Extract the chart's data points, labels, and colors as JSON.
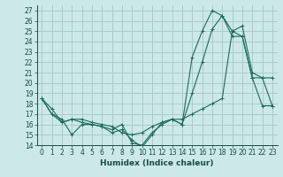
{
  "xlabel": "Humidex (Indice chaleur)",
  "background_color": "#cce8e8",
  "grid_color": "#aacccc",
  "line_color": "#1a6b5a",
  "xlim": [
    -0.5,
    23.5
  ],
  "ylim": [
    14,
    27.5
  ],
  "xticks": [
    0,
    1,
    2,
    3,
    4,
    5,
    6,
    7,
    8,
    9,
    10,
    11,
    12,
    13,
    14,
    15,
    16,
    17,
    18,
    19,
    20,
    21,
    22,
    23
  ],
  "yticks": [
    14,
    15,
    16,
    17,
    18,
    19,
    20,
    21,
    22,
    23,
    24,
    25,
    26,
    27
  ],
  "series1_x": [
    0,
    1,
    2,
    3,
    4,
    5,
    6,
    7,
    8,
    9,
    10,
    11,
    12,
    13,
    14,
    15,
    16,
    17,
    18,
    19,
    20,
    21,
    22,
    23
  ],
  "series1_y": [
    18.5,
    17.0,
    16.2,
    16.5,
    16.2,
    16.0,
    15.8,
    15.5,
    16.0,
    14.2,
    14.0,
    15.2,
    16.0,
    16.5,
    16.0,
    19.0,
    22.0,
    25.2,
    26.5,
    25.0,
    24.5,
    20.5,
    17.8,
    17.8
  ],
  "series2_x": [
    0,
    1,
    2,
    3,
    4,
    5,
    6,
    7,
    8,
    9,
    10,
    11,
    12,
    13,
    14,
    15,
    16,
    17,
    18,
    19,
    20,
    21,
    22,
    23
  ],
  "series2_y": [
    18.5,
    17.0,
    16.5,
    15.0,
    16.0,
    16.0,
    15.8,
    15.2,
    15.5,
    14.5,
    13.8,
    15.0,
    16.2,
    16.5,
    16.0,
    22.5,
    25.0,
    27.0,
    26.5,
    24.5,
    24.5,
    20.5,
    20.5,
    20.5
  ],
  "series3_x": [
    0,
    1,
    2,
    3,
    4,
    5,
    6,
    7,
    8,
    9,
    10,
    11,
    12,
    13,
    14,
    15,
    16,
    17,
    18,
    19,
    20,
    21,
    22,
    23
  ],
  "series3_y": [
    18.5,
    17.5,
    16.2,
    16.5,
    16.5,
    16.2,
    16.0,
    15.8,
    15.2,
    15.0,
    15.2,
    15.8,
    16.2,
    16.5,
    16.5,
    17.0,
    17.5,
    18.0,
    18.5,
    25.0,
    25.5,
    21.0,
    20.5,
    17.8
  ],
  "tick_fontsize": 5.5,
  "xlabel_fontsize": 6.5
}
